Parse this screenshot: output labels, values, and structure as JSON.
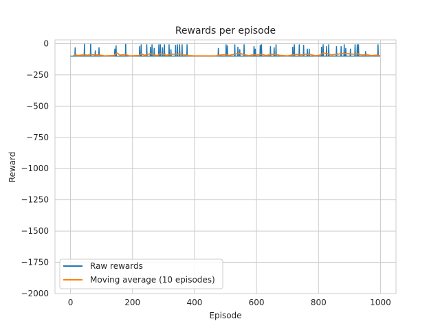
{
  "chart_data": {
    "type": "line",
    "title": "Rewards per episode",
    "xlabel": "Episode",
    "ylabel": "Reward",
    "xlim": [
      -50,
      1050
    ],
    "ylim": [
      -2000,
      30
    ],
    "xticks": [
      0,
      200,
      400,
      600,
      800,
      1000
    ],
    "yticks": [
      0,
      -250,
      -500,
      -750,
      -1000,
      -1250,
      -1500,
      -1750,
      -2000
    ],
    "xtick_labels": [
      "0",
      "200",
      "400",
      "600",
      "800",
      "1000"
    ],
    "ytick_labels": [
      "0",
      "−250",
      "−500",
      "−750",
      "−1000",
      "−1250",
      "−1500",
      "−1750",
      "−2000"
    ],
    "grid": true,
    "legend_position": "lower-left",
    "baseline": -100,
    "series": [
      {
        "name": "Raw rewards",
        "color": "#1f77b4",
        "spikes": [
          {
            "x": 15,
            "y": -30
          },
          {
            "x": 45,
            "y": -2
          },
          {
            "x": 65,
            "y": -2
          },
          {
            "x": 80,
            "y": -55
          },
          {
            "x": 92,
            "y": -30
          },
          {
            "x": 143,
            "y": -40
          },
          {
            "x": 147,
            "y": -15
          },
          {
            "x": 178,
            "y": -2
          },
          {
            "x": 223,
            "y": -20
          },
          {
            "x": 228,
            "y": -5
          },
          {
            "x": 246,
            "y": -5
          },
          {
            "x": 258,
            "y": -25
          },
          {
            "x": 263,
            "y": -5
          },
          {
            "x": 270,
            "y": -35
          },
          {
            "x": 285,
            "y": -5
          },
          {
            "x": 290,
            "y": -5
          },
          {
            "x": 297,
            "y": -30
          },
          {
            "x": 303,
            "y": -5
          },
          {
            "x": 318,
            "y": -5
          },
          {
            "x": 324,
            "y": -45
          },
          {
            "x": 339,
            "y": -10
          },
          {
            "x": 345,
            "y": -5
          },
          {
            "x": 352,
            "y": -5
          },
          {
            "x": 360,
            "y": -5
          },
          {
            "x": 376,
            "y": -5
          },
          {
            "x": 477,
            "y": -35
          },
          {
            "x": 502,
            "y": -5
          },
          {
            "x": 506,
            "y": -15
          },
          {
            "x": 530,
            "y": -5
          },
          {
            "x": 540,
            "y": -25
          },
          {
            "x": 546,
            "y": -45
          },
          {
            "x": 560,
            "y": -5
          },
          {
            "x": 592,
            "y": -20
          },
          {
            "x": 596,
            "y": -40
          },
          {
            "x": 612,
            "y": -10
          },
          {
            "x": 616,
            "y": -5
          },
          {
            "x": 645,
            "y": -20
          },
          {
            "x": 657,
            "y": -30
          },
          {
            "x": 663,
            "y": -5
          },
          {
            "x": 717,
            "y": -25
          },
          {
            "x": 722,
            "y": -5
          },
          {
            "x": 738,
            "y": -5
          },
          {
            "x": 752,
            "y": -10
          },
          {
            "x": 764,
            "y": -40
          },
          {
            "x": 770,
            "y": -40
          },
          {
            "x": 810,
            "y": -25
          },
          {
            "x": 815,
            "y": -5
          },
          {
            "x": 826,
            "y": -20
          },
          {
            "x": 833,
            "y": -5
          },
          {
            "x": 858,
            "y": -20
          },
          {
            "x": 873,
            "y": -20
          },
          {
            "x": 883,
            "y": -5
          },
          {
            "x": 888,
            "y": -35
          },
          {
            "x": 903,
            "y": -40
          },
          {
            "x": 918,
            "y": -5
          },
          {
            "x": 925,
            "y": -5
          },
          {
            "x": 929,
            "y": -5
          },
          {
            "x": 952,
            "y": -60
          },
          {
            "x": 992,
            "y": -5
          }
        ]
      },
      {
        "name": "Moving average (10 episodes)",
        "color": "#ff7f0e",
        "points": [
          {
            "x": 9,
            "y": -97
          },
          {
            "x": 15,
            "y": -90
          },
          {
            "x": 25,
            "y": -95
          },
          {
            "x": 45,
            "y": -88
          },
          {
            "x": 55,
            "y": -93
          },
          {
            "x": 65,
            "y": -86
          },
          {
            "x": 80,
            "y": -90
          },
          {
            "x": 95,
            "y": -92
          },
          {
            "x": 110,
            "y": -98
          },
          {
            "x": 140,
            "y": -95
          },
          {
            "x": 150,
            "y": -75
          },
          {
            "x": 160,
            "y": -92
          },
          {
            "x": 178,
            "y": -88
          },
          {
            "x": 190,
            "y": -98
          },
          {
            "x": 220,
            "y": -95
          },
          {
            "x": 228,
            "y": -82
          },
          {
            "x": 240,
            "y": -93
          },
          {
            "x": 258,
            "y": -80
          },
          {
            "x": 270,
            "y": -90
          },
          {
            "x": 280,
            "y": -96
          },
          {
            "x": 290,
            "y": -80
          },
          {
            "x": 300,
            "y": -85
          },
          {
            "x": 310,
            "y": -93
          },
          {
            "x": 324,
            "y": -84
          },
          {
            "x": 340,
            "y": -85
          },
          {
            "x": 352,
            "y": -82
          },
          {
            "x": 365,
            "y": -90
          },
          {
            "x": 380,
            "y": -96
          },
          {
            "x": 400,
            "y": -98
          },
          {
            "x": 470,
            "y": -98
          },
          {
            "x": 480,
            "y": -92
          },
          {
            "x": 500,
            "y": -88
          },
          {
            "x": 512,
            "y": -94
          },
          {
            "x": 530,
            "y": -84
          },
          {
            "x": 546,
            "y": -78
          },
          {
            "x": 560,
            "y": -88
          },
          {
            "x": 575,
            "y": -96
          },
          {
            "x": 592,
            "y": -88
          },
          {
            "x": 600,
            "y": -92
          },
          {
            "x": 616,
            "y": -84
          },
          {
            "x": 630,
            "y": -95
          },
          {
            "x": 645,
            "y": -88
          },
          {
            "x": 660,
            "y": -85
          },
          {
            "x": 675,
            "y": -94
          },
          {
            "x": 700,
            "y": -98
          },
          {
            "x": 717,
            "y": -90
          },
          {
            "x": 730,
            "y": -86
          },
          {
            "x": 745,
            "y": -90
          },
          {
            "x": 760,
            "y": -84
          },
          {
            "x": 775,
            "y": -88
          },
          {
            "x": 790,
            "y": -97
          },
          {
            "x": 805,
            "y": -92
          },
          {
            "x": 815,
            "y": -75
          },
          {
            "x": 828,
            "y": -80
          },
          {
            "x": 840,
            "y": -90
          },
          {
            "x": 858,
            "y": -86
          },
          {
            "x": 873,
            "y": -80
          },
          {
            "x": 888,
            "y": -80
          },
          {
            "x": 903,
            "y": -82
          },
          {
            "x": 915,
            "y": -85
          },
          {
            "x": 925,
            "y": -80
          },
          {
            "x": 940,
            "y": -92
          },
          {
            "x": 955,
            "y": -88
          },
          {
            "x": 970,
            "y": -96
          },
          {
            "x": 990,
            "y": -92
          },
          {
            "x": 999,
            "y": -97
          }
        ]
      }
    ]
  }
}
